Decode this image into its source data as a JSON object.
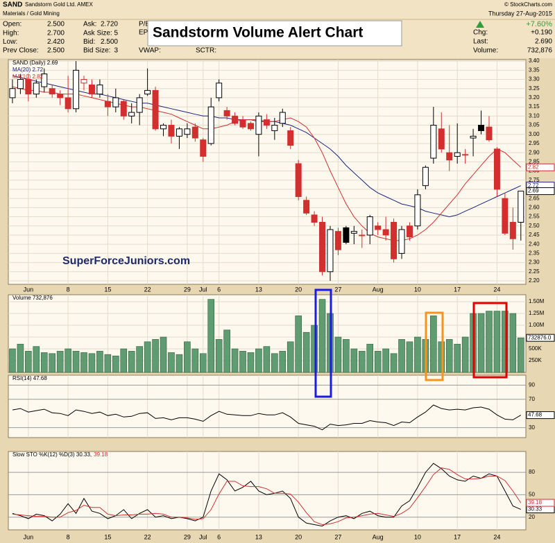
{
  "header": {
    "symbol": "SAND",
    "name": "Sandstorm Gold Ltd. AMEX",
    "sector": "Materials / Gold Mining",
    "quote": [
      [
        [
          "Open:",
          "2.500"
        ],
        [
          "High:",
          "2.700"
        ],
        [
          "Low:",
          "2.420"
        ],
        [
          "Prev Close:",
          "2.500"
        ]
      ],
      [
        [
          "Ask:",
          "2.720"
        ],
        [
          "Ask Size:",
          "5"
        ],
        [
          "Bid:",
          "2.500"
        ],
        [
          "Bid Size:",
          "3"
        ]
      ]
    ],
    "extra_labels": [
      "P/E:",
      "EPS:",
      "VWAP:",
      "SCTR:"
    ],
    "date": "Thursday 27-Aug-2015",
    "change_pct": "+7.60%",
    "stats": [
      [
        "Chg:",
        "+0.190"
      ],
      [
        "Last:",
        "2.690"
      ],
      [
        "Volume:",
        "732,876"
      ]
    ],
    "copyright": "© StockCharts.com",
    "title": "Sandstorm Volume Alert Chart",
    "watermark": "SuperForceJuniors.com"
  },
  "chart_data": [
    {
      "type": "candlestick",
      "up_color": "#000000",
      "down_color": "#d32f2f",
      "last_label": "2.69",
      "legend": [
        [
          {
            "text": "SAND (Daily) 2.69",
            "color": "#000000"
          }
        ],
        [
          {
            "text": "MA(20) 2.72",
            "color": "#1a237e"
          }
        ],
        [
          {
            "text": "MA(10) 2.82",
            "color": "#d32f2f"
          }
        ]
      ],
      "open": [
        3.2,
        3.25,
        3.3,
        3.22,
        3.26,
        3.25,
        3.22,
        3.2,
        3.14,
        3.28,
        3.27,
        3.22,
        3.18,
        3.15,
        3.18,
        3.1,
        3.12,
        3.22,
        3.24,
        3.03,
        3.05,
        2.99,
        3.0,
        3.04,
        2.97,
        2.95,
        3.2,
        3.13,
        3.1,
        3.08,
        3.06,
        3.0,
        3.08,
        3.02,
        3.06,
        3.02,
        2.84,
        2.64,
        2.56,
        2.52,
        2.25,
        2.47,
        2.49,
        2.46,
        2.45,
        2.45,
        2.5,
        2.48,
        2.52,
        2.35,
        2.5,
        2.5,
        2.72,
        2.87,
        3.03,
        2.9,
        2.88,
        2.89,
        2.98,
        3.05,
        3.04,
        2.92,
        2.65,
        2.52,
        2.52
      ],
      "high": [
        3.3,
        3.33,
        3.33,
        3.3,
        3.36,
        3.27,
        3.24,
        3.32,
        3.4,
        3.32,
        3.3,
        3.3,
        3.22,
        3.25,
        3.19,
        3.17,
        3.22,
        3.36,
        3.26,
        3.06,
        3.08,
        3.04,
        3.06,
        3.06,
        2.98,
        3.2,
        3.3,
        3.15,
        3.12,
        3.1,
        3.07,
        3.12,
        3.11,
        3.09,
        3.14,
        3.04,
        2.86,
        2.66,
        2.58,
        2.55,
        2.5,
        2.49,
        2.5,
        2.5,
        2.48,
        2.56,
        2.52,
        2.55,
        2.54,
        2.5,
        2.52,
        2.7,
        2.83,
        3.15,
        3.12,
        3.05,
        3.06,
        2.92,
        3.03,
        3.13,
        3.1,
        2.93,
        2.68,
        2.6,
        2.69
      ],
      "low": [
        3.17,
        3.22,
        3.18,
        3.2,
        3.23,
        3.2,
        3.16,
        3.12,
        3.12,
        3.24,
        3.2,
        3.2,
        3.1,
        3.12,
        3.08,
        3.06,
        3.05,
        3.21,
        3.02,
        2.99,
        2.95,
        2.92,
        2.98,
        2.96,
        2.85,
        2.94,
        3.18,
        3.08,
        3.05,
        3.03,
        3.02,
        2.88,
        3.03,
        2.97,
        3.04,
        2.92,
        2.64,
        2.56,
        2.5,
        2.23,
        2.2,
        2.34,
        2.4,
        2.4,
        2.38,
        2.4,
        2.45,
        2.42,
        2.3,
        2.32,
        2.42,
        2.48,
        2.7,
        2.84,
        2.9,
        2.8,
        2.84,
        2.84,
        2.88,
        3.0,
        2.96,
        2.66,
        2.45,
        2.37,
        2.42
      ],
      "close": [
        3.25,
        3.3,
        3.22,
        3.28,
        3.33,
        3.22,
        3.2,
        3.14,
        3.35,
        3.3,
        3.22,
        3.27,
        3.15,
        3.2,
        3.1,
        3.12,
        3.2,
        3.24,
        3.03,
        3.05,
        2.99,
        3.03,
        3.03,
        2.98,
        2.88,
        3.15,
        3.28,
        3.1,
        3.06,
        3.04,
        3.03,
        3.1,
        3.05,
        3.05,
        3.12,
        2.94,
        2.66,
        2.57,
        2.52,
        2.25,
        2.48,
        2.37,
        2.41,
        2.47,
        2.45,
        2.55,
        2.48,
        2.45,
        2.32,
        2.48,
        2.44,
        2.67,
        2.82,
        3.05,
        2.92,
        2.86,
        2.9,
        2.89,
        2.99,
        3.02,
        2.97,
        2.7,
        2.46,
        2.43,
        2.69
      ],
      "overlays": [
        {
          "color": "#1a237e",
          "last_label": "2.72",
          "values": [
            3.32,
            3.31,
            3.3,
            3.29,
            3.28,
            3.27,
            3.26,
            3.25,
            3.24,
            3.23,
            3.22,
            3.22,
            3.21,
            3.2,
            3.19,
            3.18,
            3.17,
            3.17,
            3.16,
            3.15,
            3.14,
            3.13,
            3.12,
            3.11,
            3.1,
            3.1,
            3.09,
            3.09,
            3.08,
            3.08,
            3.08,
            3.07,
            3.07,
            3.07,
            3.06,
            3.05,
            3.03,
            3.01,
            2.98,
            2.95,
            2.92,
            2.88,
            2.83,
            2.79,
            2.75,
            2.71,
            2.68,
            2.66,
            2.64,
            2.62,
            2.61,
            2.6,
            2.58,
            2.57,
            2.56,
            2.55,
            2.56,
            2.58,
            2.6,
            2.62,
            2.64,
            2.66,
            2.68,
            2.7,
            2.72
          ]
        },
        {
          "color": "#d32f2f",
          "last_label": "2.82",
          "values": [
            3.26,
            3.25,
            3.24,
            3.24,
            3.23,
            3.23,
            3.22,
            3.22,
            3.22,
            3.21,
            3.2,
            3.19,
            3.18,
            3.17,
            3.16,
            3.15,
            3.15,
            3.14,
            3.13,
            3.12,
            3.11,
            3.09,
            3.07,
            3.05,
            3.03,
            3.03,
            3.04,
            3.05,
            3.07,
            3.08,
            3.08,
            3.08,
            3.07,
            3.07,
            3.08,
            3.09,
            3.07,
            3.04,
            2.98,
            2.9,
            2.8,
            2.71,
            2.62,
            2.55,
            2.5,
            2.46,
            2.44,
            2.43,
            2.42,
            2.42,
            2.43,
            2.45,
            2.48,
            2.52,
            2.57,
            2.62,
            2.67,
            2.73,
            2.78,
            2.83,
            2.88,
            2.92,
            2.9,
            2.86,
            2.82
          ]
        }
      ],
      "xlim": [
        -0.52,
        64.63
      ],
      "xticks": [
        {
          "value": 2,
          "label": "Jun"
        },
        {
          "value": 7,
          "label": "8"
        },
        {
          "value": 12,
          "label": "15"
        },
        {
          "value": 17,
          "label": "22"
        },
        {
          "value": 22,
          "label": "29"
        },
        {
          "value": 24,
          "label": "Jul"
        },
        {
          "value": 26,
          "label": "6"
        },
        {
          "value": 31,
          "label": "13"
        },
        {
          "value": 36,
          "label": "20"
        },
        {
          "value": 41,
          "label": "27"
        },
        {
          "value": 46,
          "label": "Aug"
        },
        {
          "value": 51,
          "label": "10"
        },
        {
          "value": 56,
          "label": "17"
        },
        {
          "value": 61,
          "label": "24"
        }
      ],
      "ylim": [
        2.181,
        3.408
      ],
      "yticks": [
        {
          "value": 3.4,
          "label": "3.40"
        },
        {
          "value": 3.35,
          "label": "3.35"
        },
        {
          "value": 3.3,
          "label": "3.30"
        },
        {
          "value": 3.25,
          "label": "3.25"
        },
        {
          "value": 3.2,
          "label": "3.20"
        },
        {
          "value": 3.15,
          "label": "3.15"
        },
        {
          "value": 3.1,
          "label": "3.10"
        },
        {
          "value": 3.05,
          "label": "3.05"
        },
        {
          "value": 3.0,
          "label": "3.00"
        },
        {
          "value": 2.95,
          "label": "2.95"
        },
        {
          "value": 2.9,
          "label": "2.90"
        },
        {
          "value": 2.85,
          "label": "2.85"
        },
        {
          "value": 2.8,
          "label": "2.80"
        },
        {
          "value": 2.75,
          "label": "2.75"
        },
        {
          "value": 2.7,
          "label": "2.70"
        },
        {
          "value": 2.65,
          "label": "2.65"
        },
        {
          "value": 2.6,
          "label": "2.60"
        },
        {
          "value": 2.55,
          "label": "2.55"
        },
        {
          "value": 2.5,
          "label": "2.50"
        },
        {
          "value": 2.45,
          "label": "2.45"
        },
        {
          "value": 2.4,
          "label": "2.40"
        },
        {
          "value": 2.35,
          "label": "2.35"
        },
        {
          "value": 2.3,
          "label": "2.30"
        },
        {
          "value": 2.25,
          "label": "2.25"
        },
        {
          "value": 2.2,
          "label": "2.20"
        }
      ],
      "grid": true
    },
    {
      "type": "bar",
      "color": "#5f9c72",
      "legend": [
        [
          {
            "text": "Volume 732,876",
            "color": "#000000"
          }
        ]
      ],
      "axis_marker": "732876.0",
      "values": [
        500000,
        600000,
        450000,
        550000,
        420000,
        400000,
        450000,
        500000,
        450000,
        420000,
        400000,
        450000,
        380000,
        350000,
        500000,
        450000,
        550000,
        650000,
        700000,
        750000,
        420000,
        380000,
        650000,
        500000,
        400000,
        1550000,
        700000,
        900000,
        500000,
        450000,
        420000,
        500000,
        550000,
        400000,
        450000,
        650000,
        1200000,
        850000,
        1000000,
        1550000,
        1250000,
        750000,
        700000,
        500000,
        450000,
        600000,
        450000,
        500000,
        400000,
        700000,
        650000,
        750000,
        700000,
        1200000,
        650000,
        700000,
        600000,
        750000,
        1250000,
        1250000,
        1300000,
        1300000,
        1300000,
        1250000,
        732876
      ],
      "ylim": [
        0,
        1647000
      ],
      "yticks": [
        {
          "value": 250000,
          "label": "250K"
        },
        {
          "value": 500000,
          "label": "500K"
        },
        {
          "value": 750000,
          "label": "750K"
        },
        {
          "value": 1000000,
          "label": "1.00M"
        },
        {
          "value": 1250000,
          "label": "1.25M"
        },
        {
          "value": 1500000,
          "label": "1.50M"
        }
      ],
      "grid": true
    },
    {
      "type": "line",
      "legend": [
        [
          {
            "text": "RSI(14) 47.68",
            "color": "#000000"
          }
        ]
      ],
      "series": [
        {
          "color": "#000000",
          "last_label": "47.68",
          "values": [
            55,
            57,
            52,
            54,
            56,
            51,
            50,
            47,
            55,
            53,
            50,
            52,
            47,
            49,
            45,
            46,
            50,
            51,
            43,
            44,
            41,
            44,
            44,
            42,
            39,
            47,
            53,
            49,
            48,
            47,
            47,
            50,
            48,
            48,
            51,
            45,
            36,
            34,
            32,
            27,
            35,
            33,
            34,
            36,
            36,
            40,
            38,
            37,
            33,
            38,
            37,
            45,
            52,
            62,
            57,
            55,
            56,
            55,
            58,
            59,
            56,
            48,
            42,
            41,
            47.68
          ]
        }
      ],
      "ylim": [
        16,
        104
      ],
      "yticks": [
        90,
        70,
        30
      ],
      "grid": true
    },
    {
      "type": "line",
      "legend": [
        [
          {
            "text": "Slow STO %K(12) %D(3) 30.33,",
            "color": "#000000"
          },
          {
            "text": "39.18",
            "color": "#d32f2f"
          }
        ]
      ],
      "series": [
        {
          "color": "#000000",
          "last_label": "30.33",
          "values": [
            25,
            22,
            18,
            24,
            22,
            15,
            24,
            38,
            25,
            45,
            28,
            25,
            18,
            22,
            30,
            18,
            25,
            30,
            20,
            22,
            18,
            20,
            18,
            15,
            20,
            55,
            78,
            70,
            55,
            60,
            68,
            55,
            50,
            52,
            55,
            45,
            20,
            12,
            10,
            8,
            15,
            20,
            22,
            18,
            25,
            28,
            22,
            20,
            20,
            35,
            42,
            60,
            80,
            92,
            85,
            75,
            70,
            68,
            75,
            72,
            78,
            75,
            55,
            35,
            30.33
          ]
        },
        {
          "color": "#d32f2f",
          "last_label": "39.18",
          "values": [
            24,
            23,
            22,
            21,
            21,
            20,
            20,
            26,
            29,
            36,
            33,
            33,
            24,
            22,
            23,
            23,
            24,
            24,
            25,
            24,
            20,
            20,
            19,
            17,
            18,
            30,
            51,
            68,
            68,
            62,
            61,
            61,
            58,
            52,
            52,
            51,
            40,
            26,
            14,
            10,
            11,
            14,
            19,
            20,
            22,
            24,
            25,
            23,
            21,
            25,
            32,
            46,
            61,
            77,
            86,
            84,
            77,
            71,
            71,
            72,
            75,
            75,
            69,
            55,
            39.18
          ]
        }
      ],
      "xticks": [
        {
          "value": 2,
          "label": "Jun"
        },
        {
          "value": 7,
          "label": "8"
        },
        {
          "value": 12,
          "label": "15"
        },
        {
          "value": 17,
          "label": "22"
        },
        {
          "value": 22,
          "label": "29"
        },
        {
          "value": 24,
          "label": "Jul"
        },
        {
          "value": 26,
          "label": "6"
        },
        {
          "value": 31,
          "label": "13"
        },
        {
          "value": 36,
          "label": "20"
        },
        {
          "value": 41,
          "label": "27"
        },
        {
          "value": 46,
          "label": "Aug"
        },
        {
          "value": 51,
          "label": "10"
        },
        {
          "value": 56,
          "label": "17"
        },
        {
          "value": 61,
          "label": "24"
        }
      ],
      "ylim": [
        3,
        108
      ],
      "yticks": [
        80,
        50,
        20
      ],
      "grid": true
    }
  ]
}
